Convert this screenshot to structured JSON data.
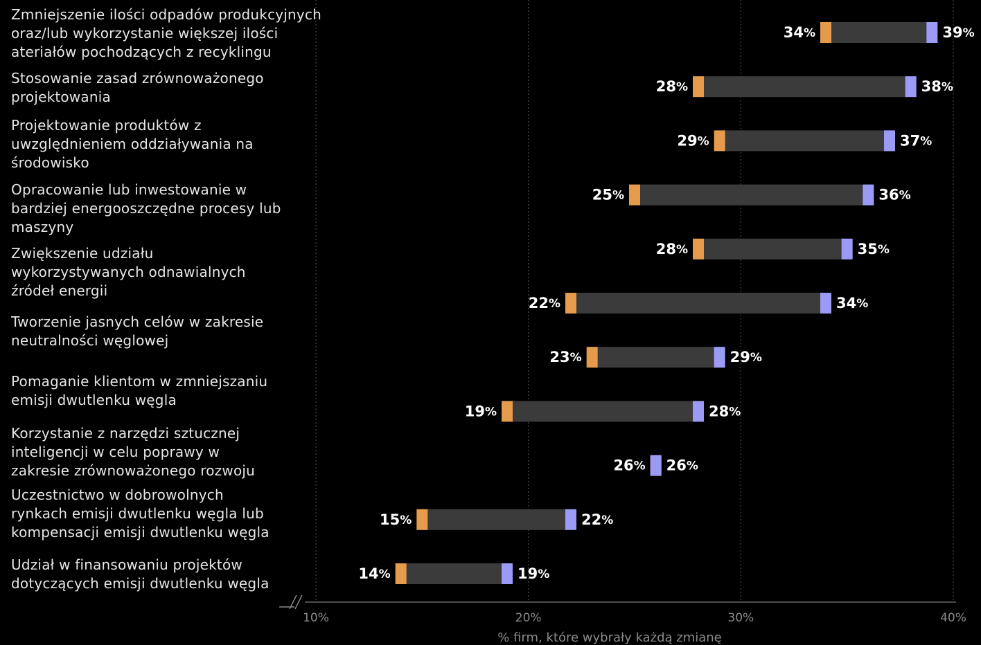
{
  "chart_data": {
    "type": "dumbbell",
    "categories": [
      "Zmniejszenie ilości odpadów produkcyjnych\noraz/lub wykorzystanie większej ilości\nateriałów pochodzących z recyklingu",
      "Stosowanie zasad zrównoważonego\nprojektowania",
      "Projektowanie produktów z\nuwzględnieniem oddziaływania na\nśrodowisko",
      "Opracowanie lub inwestowanie w\nbardziej energooszczędne procesy lub\nmaszyny",
      "Zwiększenie udziału\nwykorzystywanych odnawialnych\nźródeł energii",
      null,
      "Tworzenie jasnych celów w zakresie\nneutralności węglowej",
      "Pomaganie klientom w zmniejszaniu\nemisji dwutlenku węgla",
      "Korzystanie z narzędzi sztucznej\ninteligencji w celu poprawy w\nzakresie zrównoważonego rozwoju",
      "Uczestnictwo w dobrowolnych\nrynkach emisji dwutlenku węgla lub\nkompensacji emisji dwutlenku węgla",
      "Udział w finansowaniu projektów\ndotyczących emisji dwutlenku węgla"
    ],
    "series": [
      {
        "color": "#e59a4c",
        "values": [
          34,
          28,
          29,
          25,
          28,
          22,
          23,
          19,
          26,
          15,
          14
        ],
        "value_labels": [
          "34%",
          "28%",
          "29%",
          "25%",
          "28%",
          "22%",
          "23%",
          "19%",
          "26%",
          "15%",
          "14%"
        ]
      },
      {
        "color": "#9b9bf5",
        "values": [
          39,
          38,
          37,
          36,
          35,
          34,
          29,
          28,
          26,
          22,
          19
        ],
        "value_labels": [
          "39%",
          "38%",
          "37%",
          "36%",
          "35%",
          "34%",
          "29%",
          "28%",
          "26%",
          "22%",
          "19%"
        ]
      }
    ],
    "range_color": "#3b3b3b",
    "xlim": [
      10,
      40
    ],
    "xticks": [
      {
        "value": 10,
        "label": "10%"
      },
      {
        "value": 20,
        "label": "20%"
      },
      {
        "value": 30,
        "label": "30%"
      },
      {
        "value": 40,
        "label": "40%"
      }
    ],
    "xlabel": "% firm, które wybrały każdą zmianę",
    "grid": true
  }
}
